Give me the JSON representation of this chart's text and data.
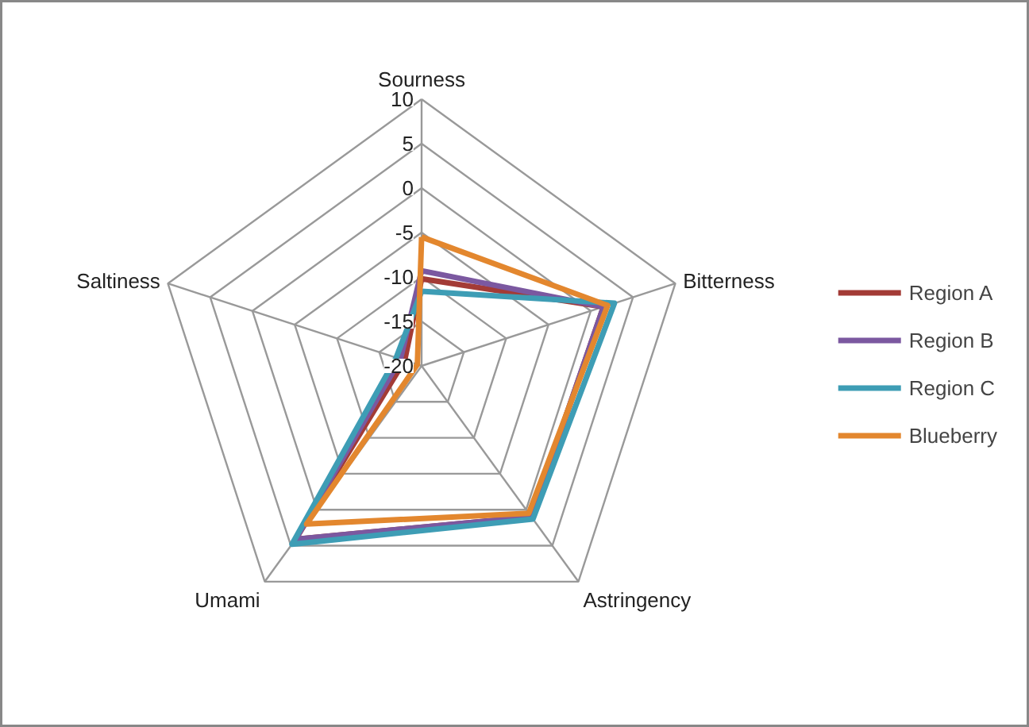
{
  "chart_data": {
    "type": "radar",
    "categories": [
      "Sourness",
      "Bitterness",
      "Astringency",
      "Umami",
      "Saltiness"
    ],
    "series": [
      {
        "name": "Region A",
        "color": "#a33b36",
        "values": [
          -10.2,
          1.5,
          1.0,
          4.1,
          -18
        ]
      },
      {
        "name": "Region B",
        "color": "#7b58a0",
        "values": [
          -9.3,
          1.5,
          1.0,
          4.1,
          -17.5
        ]
      },
      {
        "name": "Region C",
        "color": "#3e9db5",
        "values": [
          -11.6,
          2.8,
          1.3,
          4.8,
          -17
        ]
      },
      {
        "name": "Blueberry",
        "color": "#e3872e",
        "values": [
          -5.5,
          2.0,
          0.5,
          2.0,
          -19.5
        ]
      }
    ],
    "ylim": [
      -20,
      10
    ],
    "yticks": [
      -20,
      -15,
      -10,
      -5,
      0,
      5,
      10
    ],
    "grid": true,
    "legend": "right"
  }
}
